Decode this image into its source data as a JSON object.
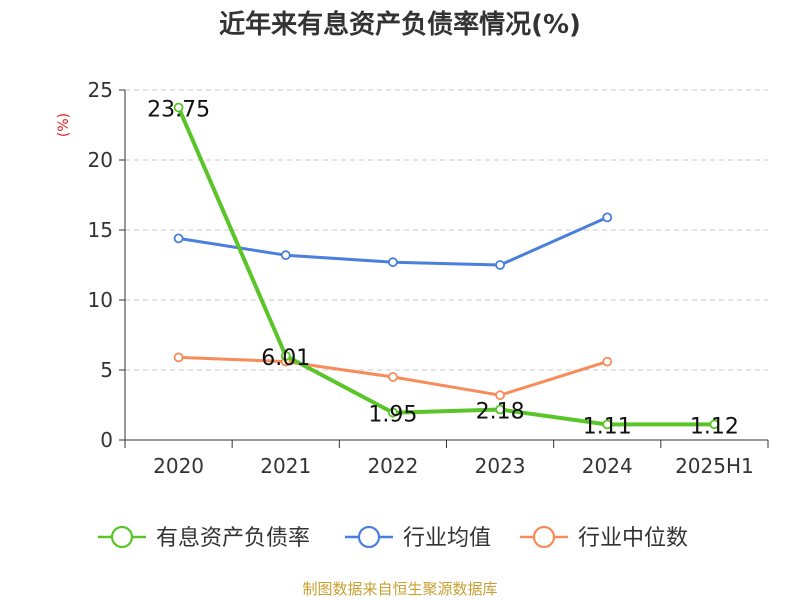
{
  "chart_data": {
    "type": "line",
    "title": "近年来有息资产负债率情况(%)",
    "ylabel": "(%)",
    "xlabel": "",
    "ylim": [
      0,
      25
    ],
    "yticks": [
      0,
      5,
      10,
      15,
      20,
      25
    ],
    "grid": "horizontal-dashed",
    "legend_position": "bottom",
    "categories": [
      "2020",
      "2021",
      "2022",
      "2023",
      "2024",
      "2025H1"
    ],
    "series": [
      {
        "name": "有息资产负债率",
        "color": "#5ac528",
        "values": [
          23.75,
          6.01,
          1.95,
          2.18,
          1.11,
          1.12
        ],
        "labels": [
          "23.75",
          "6.01",
          "1.95",
          "2.18",
          "1.11",
          "1.12"
        ]
      },
      {
        "name": "行业均值",
        "color": "#4a7fdc",
        "values": [
          14.4,
          13.2,
          12.7,
          12.5,
          15.9,
          null
        ]
      },
      {
        "name": "行业中位数",
        "color": "#f78c5a",
        "values": [
          5.9,
          5.6,
          4.5,
          3.2,
          5.6,
          null
        ]
      }
    ]
  },
  "source_text": "制图数据来自恒生聚源数据库"
}
